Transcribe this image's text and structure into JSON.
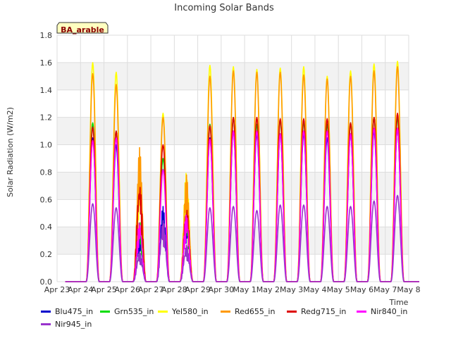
{
  "chart_data": {
    "type": "line",
    "title": "Incoming Solar Bands",
    "ylabel": "Solar Radiation (W/m2)",
    "xlabel": "Time",
    "annotation": "BA_arable",
    "ylim": [
      0,
      1.8
    ],
    "yticks": [
      "0.0",
      "0.2",
      "0.4",
      "0.6",
      "0.8",
      "1.0",
      "1.2",
      "1.4",
      "1.6",
      "1.8"
    ],
    "xticks": [
      "Apr 23",
      "Apr 24",
      "Apr 25",
      "Apr 26",
      "Apr 27",
      "Apr 28",
      "Apr 29",
      "Apr 30",
      "May 1",
      "May 2",
      "May 3",
      "May 4",
      "May 5",
      "May 6",
      "May 7",
      "May 8"
    ],
    "grid": true,
    "legend_position": "bottom",
    "days": [
      "Apr 24",
      "Apr 25",
      "Apr 26",
      "Apr 27",
      "Apr 28",
      "Apr 29",
      "Apr 30",
      "May 1",
      "May 2",
      "May 3",
      "May 4",
      "May 5",
      "May 6",
      "May 7"
    ],
    "series": [
      {
        "name": "Blu475_in",
        "color": "#0000cc",
        "daily_peak": [
          1.05,
          1.0,
          0.35,
          0.55,
          0.5,
          1.05,
          1.1,
          1.08,
          1.08,
          1.08,
          1.05,
          1.08,
          1.1,
          1.12
        ]
      },
      {
        "name": "Grn535_in",
        "color": "#00dd00",
        "daily_peak": [
          1.16,
          1.1,
          0.45,
          0.9,
          0.55,
          1.15,
          1.2,
          1.15,
          1.18,
          1.17,
          1.15,
          1.16,
          1.2,
          1.2
        ]
      },
      {
        "name": "Yel580_in",
        "color": "#ffff00",
        "daily_peak": [
          1.6,
          1.53,
          0.72,
          1.23,
          0.83,
          1.58,
          1.57,
          1.55,
          1.56,
          1.57,
          1.5,
          1.54,
          1.59,
          1.61
        ]
      },
      {
        "name": "Red655_in",
        "color": "#ff9900",
        "daily_peak": [
          1.52,
          1.44,
          0.98,
          1.2,
          0.78,
          1.5,
          1.54,
          1.53,
          1.53,
          1.51,
          1.48,
          1.5,
          1.54,
          1.57
        ]
      },
      {
        "name": "Redg715_in",
        "color": "#dd0000",
        "daily_peak": [
          1.13,
          1.1,
          0.74,
          1.0,
          0.56,
          1.14,
          1.2,
          1.2,
          1.19,
          1.19,
          1.19,
          1.16,
          1.2,
          1.23
        ]
      },
      {
        "name": "Nir840_in",
        "color": "#ff00ff",
        "daily_peak": [
          1.03,
          1.05,
          0.44,
          0.82,
          0.5,
          1.04,
          1.1,
          1.1,
          1.08,
          1.1,
          1.1,
          1.08,
          1.12,
          1.12
        ]
      },
      {
        "name": "Nir945_in",
        "color": "#9933cc",
        "daily_peak": [
          0.57,
          0.54,
          0.22,
          0.45,
          0.27,
          0.54,
          0.55,
          0.52,
          0.56,
          0.56,
          0.55,
          0.55,
          0.59,
          0.63
        ]
      }
    ]
  }
}
